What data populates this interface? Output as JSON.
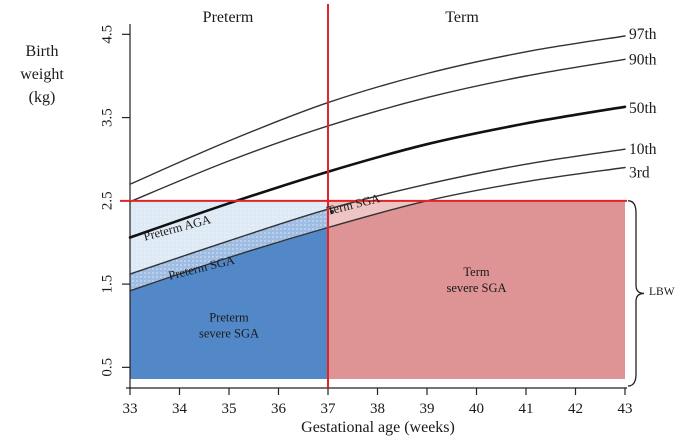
{
  "chart_data": {
    "type": "line",
    "title": "",
    "xlabel": "Gestational age (weeks)",
    "ylabel_lines": [
      "Birth",
      "weight",
      "(kg)"
    ],
    "xlim": [
      33,
      43
    ],
    "ylim": [
      0.3,
      4.6
    ],
    "x_ticks": [
      33,
      34,
      35,
      36,
      37,
      38,
      39,
      40,
      41,
      42,
      43
    ],
    "y_ticks": [
      0.5,
      1.5,
      2.5,
      3.5,
      4.5
    ],
    "y_tick_labels": [
      "0.5",
      "1.5",
      "2.5",
      "3.5",
      "4.5"
    ],
    "period_labels": {
      "preterm": "Preterm",
      "term": "Term"
    },
    "threshold_lines": {
      "term_week": 37,
      "lbw_kg": 2.5,
      "color": "#e0242a"
    },
    "series": [
      {
        "name": "97th",
        "x": [
          33,
          35,
          37,
          39,
          41,
          43
        ],
        "y": [
          2.7,
          3.22,
          3.68,
          4.03,
          4.29,
          4.48
        ],
        "color": "#333333",
        "width": 1.4
      },
      {
        "name": "90th",
        "x": [
          33,
          35,
          37,
          39,
          41,
          43
        ],
        "y": [
          2.49,
          2.98,
          3.4,
          3.74,
          4.0,
          4.2
        ],
        "color": "#333333",
        "width": 1.4
      },
      {
        "name": "50th",
        "x": [
          33,
          35,
          37,
          39,
          41,
          43
        ],
        "y": [
          2.06,
          2.47,
          2.85,
          3.18,
          3.43,
          3.63
        ],
        "color": "#111111",
        "width": 2.6
      },
      {
        "name": "10th",
        "x": [
          33,
          35,
          37,
          39,
          41,
          43
        ],
        "y": [
          1.62,
          2.02,
          2.4,
          2.7,
          2.94,
          3.12
        ],
        "color": "#333333",
        "width": 1.4
      },
      {
        "name": "3rd",
        "x": [
          33,
          35,
          37,
          39,
          41,
          43
        ],
        "y": [
          1.42,
          1.82,
          2.18,
          2.5,
          2.73,
          2.9
        ],
        "color": "#333333",
        "width": 1.4
      }
    ],
    "regions": [
      {
        "name": "Preterm AGA",
        "color": "#dde9f5"
      },
      {
        "name": "Preterm SGA",
        "color": "#9fbde3"
      },
      {
        "name": "Preterm\nsevere SGA",
        "color": "#5388c8"
      },
      {
        "name": "Term SGA",
        "color": "#efc4c4"
      },
      {
        "name": "Term\nsevere SGA",
        "color": "#de9494"
      }
    ],
    "brace_label": "LBW",
    "grid": false,
    "legend": "inline-right"
  }
}
